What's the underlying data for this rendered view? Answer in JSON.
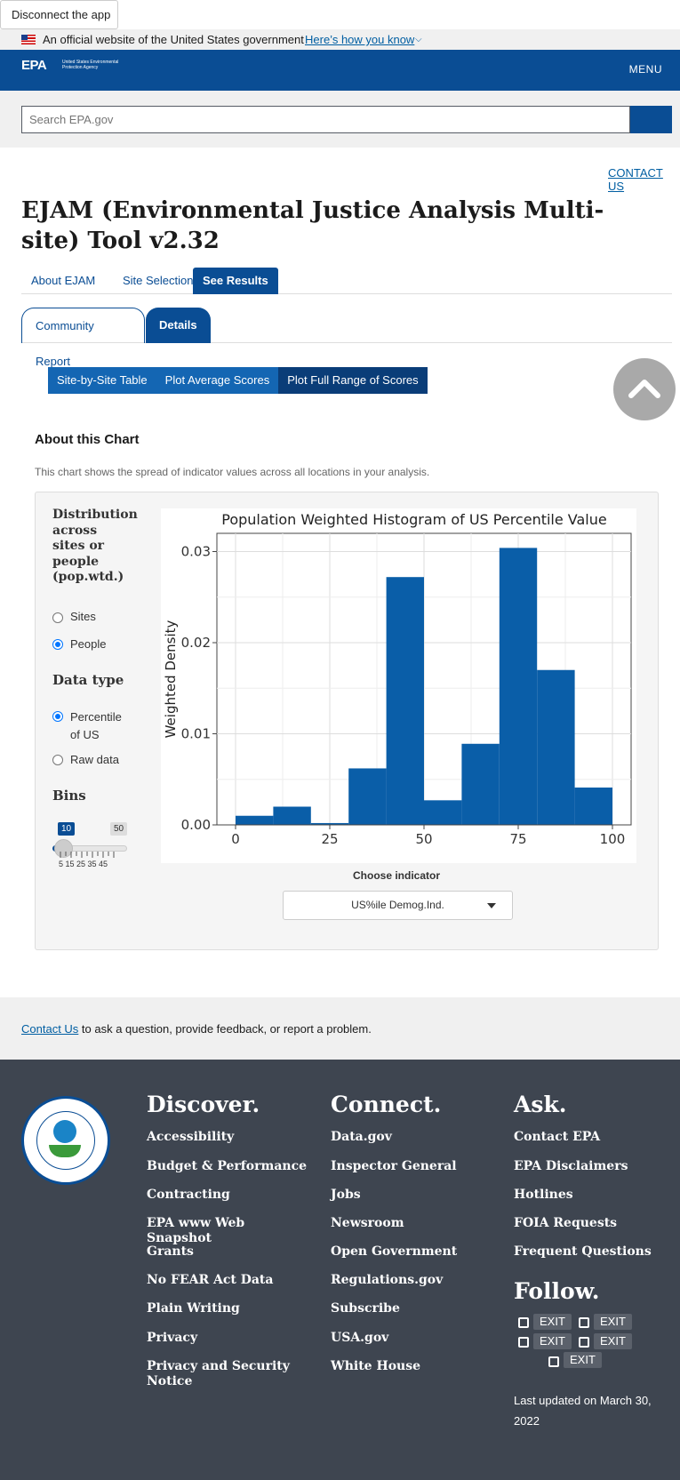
{
  "topbar": {
    "disconnect_label": "Disconnect the app"
  },
  "gov_banner": {
    "text": "An official website of the United States government",
    "link": "Here’s how you know"
  },
  "header": {
    "logo": "EPA",
    "logo_sub": "United States Environmental Protection Agency",
    "menu": "MENU"
  },
  "search": {
    "placeholder": "Search EPA.gov"
  },
  "contact_top": "CONTACT US",
  "page_title": "EJAM (Environmental Justice Analysis Multi-site) Tool v2.32",
  "main_tabs": [
    {
      "label": "About EJAM"
    },
    {
      "label": "Site Selection"
    },
    {
      "label": "See Results"
    }
  ],
  "sub_tabs": [
    {
      "label": "Community Report"
    },
    {
      "label": "Details"
    }
  ],
  "pills": [
    {
      "label": "Site-by-Site Table"
    },
    {
      "label": "Plot Average Scores"
    },
    {
      "label": "Plot Full Range of Scores"
    }
  ],
  "about": {
    "heading": "About this Chart",
    "text": "This chart shows the spread of indicator values across all locations in your analysis."
  },
  "controls": {
    "dist_heading": "Distribution across sites or people (pop.wtd.)",
    "dist_options": [
      "Sites",
      "People"
    ],
    "dist_selected": "People",
    "data_type_heading": "Data type",
    "data_type_options": [
      "Percentile of US",
      "Raw data"
    ],
    "data_type_selected": "Percentile of US",
    "bins_heading": "Bins",
    "bins_value": "10",
    "bins_max": "50",
    "bins_ticks": "5 15 25 35 45",
    "bins_level_fraction": 0.111
  },
  "chart_data": {
    "type": "bar",
    "title": "Population Weighted Histogram of US Percentile Value",
    "xlabel": "",
    "ylabel": "Weighted Density",
    "bin_edges": [
      0,
      10,
      20,
      30,
      40,
      50,
      60,
      70,
      80,
      90,
      100
    ],
    "values": [
      0.001,
      0.002,
      0.0002,
      0.0062,
      0.0272,
      0.0027,
      0.0089,
      0.0304,
      0.017,
      0.0041
    ],
    "xlim": [
      0,
      100
    ],
    "ylim": [
      0,
      0.032
    ],
    "xticks": [
      "0",
      "25",
      "50",
      "75",
      "100"
    ],
    "yticks": [
      "0.00",
      "0.01",
      "0.02",
      "0.03"
    ],
    "grid": true,
    "color": "#0a5ea8"
  },
  "indicator": {
    "label": "Choose indicator",
    "selected": "US%ile Demog.Ind."
  },
  "feedback": {
    "link": "Contact Us",
    "text": " to ask a question, provide feedback, or report a problem."
  },
  "footer": {
    "discover": {
      "heading": "Discover.",
      "links": [
        "Accessibility",
        "Budget & Performance",
        "Contracting",
        "EPA www Web Snapshot",
        "Grants",
        "No FEAR Act Data",
        "Plain Writing",
        "Privacy",
        "Privacy and Security Notice"
      ]
    },
    "connect": {
      "heading": "Connect.",
      "links": [
        "Data.gov",
        "Inspector General",
        "Jobs",
        "Newsroom",
        "Open Government",
        "Regulations.gov",
        "Subscribe",
        "USA.gov",
        "White House"
      ]
    },
    "ask": {
      "heading": "Ask.",
      "links": [
        "Contact EPA",
        "EPA Disclaimers",
        "Hotlines",
        "FOIA Requests",
        "Frequent Questions"
      ]
    },
    "follow": {
      "heading": "Follow.",
      "exit": "EXIT"
    },
    "updated": "Last updated on March 30, 2022"
  }
}
